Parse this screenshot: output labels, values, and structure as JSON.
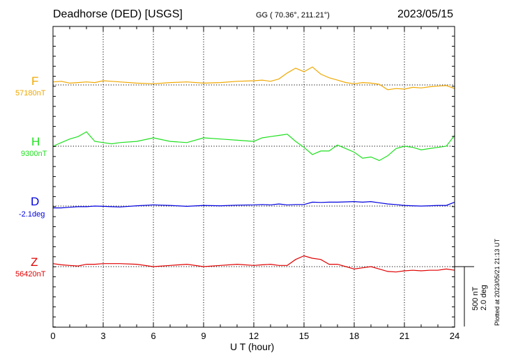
{
  "header": {
    "station": "Deadhorse (DED)  [USGS]",
    "coords": "GG ( 70.36°, 211.21°)",
    "date": "2023/05/15"
  },
  "scale": {
    "nT": "500 nT",
    "deg": "2.0 deg"
  },
  "plotted": "Plotted at 2023/05/21 21:13 UT",
  "chart_data": {
    "type": "line",
    "xlabel": "U T (hour)",
    "xlim": [
      0,
      24
    ],
    "xticks": [
      0,
      3,
      6,
      9,
      12,
      15,
      18,
      21,
      24
    ],
    "grid": "dotted vertical every 3 hours",
    "series": [
      {
        "name": "F",
        "baseline_label": "57180nT",
        "baseline": 57180,
        "unit": "nT",
        "color": "#f0a800",
        "x": [
          0,
          0.5,
          1,
          1.5,
          2,
          2.5,
          3,
          3.5,
          4,
          5,
          6,
          7,
          8,
          9,
          10,
          11,
          12,
          12.5,
          13,
          13.5,
          14,
          14.5,
          15,
          15.5,
          16,
          16.5,
          17,
          17.5,
          18,
          18.5,
          19,
          19.5,
          20,
          20.5,
          21,
          21.5,
          22,
          22.5,
          23,
          23.5,
          24
        ],
        "y": [
          57205,
          57210,
          57195,
          57200,
          57205,
          57200,
          57215,
          57210,
          57205,
          57195,
          57190,
          57200,
          57205,
          57195,
          57200,
          57210,
          57215,
          57220,
          57210,
          57230,
          57280,
          57320,
          57290,
          57330,
          57270,
          57240,
          57220,
          57200,
          57190,
          57200,
          57195,
          57185,
          57140,
          57150,
          57145,
          57160,
          57155,
          57165,
          57170,
          57175,
          57150
        ]
      },
      {
        "name": "H",
        "baseline_label": "9300nT",
        "baseline": 9300,
        "unit": "nT",
        "color": "#1ee01e",
        "x": [
          0,
          0.5,
          1,
          1.5,
          2,
          2.5,
          3,
          3.5,
          4,
          5,
          6,
          7,
          8,
          9,
          10,
          11,
          12,
          12.5,
          13,
          13.5,
          14,
          14.5,
          15,
          15.5,
          16,
          16.5,
          17,
          17.5,
          18,
          18.5,
          19,
          19.5,
          20,
          20.5,
          21,
          21.5,
          22,
          22.5,
          23,
          23.5,
          24
        ],
        "y": [
          9300,
          9330,
          9360,
          9380,
          9420,
          9340,
          9330,
          9320,
          9330,
          9340,
          9370,
          9340,
          9330,
          9370,
          9360,
          9350,
          9340,
          9370,
          9380,
          9390,
          9400,
          9340,
          9290,
          9230,
          9260,
          9260,
          9310,
          9280,
          9250,
          9200,
          9210,
          9180,
          9220,
          9280,
          9300,
          9290,
          9270,
          9280,
          9290,
          9300,
          9390
        ]
      },
      {
        "name": "D",
        "baseline_label": "-2.1deg",
        "baseline": -2.1,
        "unit": "deg",
        "color": "#0000e0",
        "x": [
          0,
          0.5,
          1,
          1.5,
          2,
          2.5,
          3,
          3.5,
          4,
          5,
          6,
          7,
          8,
          9,
          10,
          11,
          12,
          12.5,
          13,
          13.5,
          14,
          14.5,
          15,
          15.5,
          16,
          16.5,
          17,
          17.5,
          18,
          18.5,
          19,
          19.5,
          20,
          20.5,
          21,
          21.5,
          22,
          22.5,
          23,
          23.5,
          24
        ],
        "y": [
          -2.16,
          -2.16,
          -2.14,
          -2.12,
          -2.12,
          -2.1,
          -2.11,
          -2.12,
          -2.13,
          -2.09,
          -2.06,
          -2.08,
          -2.11,
          -2.08,
          -2.09,
          -2.07,
          -2.06,
          -2.05,
          -2.06,
          -2.03,
          -2.06,
          -2.05,
          -2.05,
          -1.97,
          -1.98,
          -1.97,
          -1.97,
          -1.96,
          -1.95,
          -1.97,
          -1.95,
          -1.99,
          -2.03,
          -2.05,
          -2.08,
          -2.09,
          -2.1,
          -2.09,
          -2.08,
          -2.08,
          -1.97
        ]
      },
      {
        "name": "Z",
        "baseline_label": "56420nT",
        "baseline": 56420,
        "unit": "nT",
        "color": "#e00000",
        "x": [
          0,
          0.5,
          1,
          1.5,
          2,
          2.5,
          3,
          3.5,
          4,
          5,
          6,
          7,
          8,
          9,
          10,
          11,
          12,
          12.5,
          13,
          13.5,
          14,
          14.5,
          15,
          15.5,
          16,
          16.5,
          17,
          17.5,
          18,
          18.5,
          19,
          19.5,
          20,
          20.5,
          21,
          21.5,
          22,
          22.5,
          23,
          23.5,
          24
        ],
        "y": [
          56445,
          56435,
          56430,
          56425,
          56440,
          56440,
          56445,
          56445,
          56445,
          56440,
          56420,
          56430,
          56440,
          56420,
          56430,
          56440,
          56430,
          56435,
          56440,
          56430,
          56430,
          56480,
          56510,
          56490,
          56480,
          56440,
          56440,
          56420,
          56400,
          56410,
          56420,
          56400,
          56380,
          56375,
          56385,
          56390,
          56385,
          56390,
          56390,
          56400,
          56390
        ]
      }
    ]
  }
}
